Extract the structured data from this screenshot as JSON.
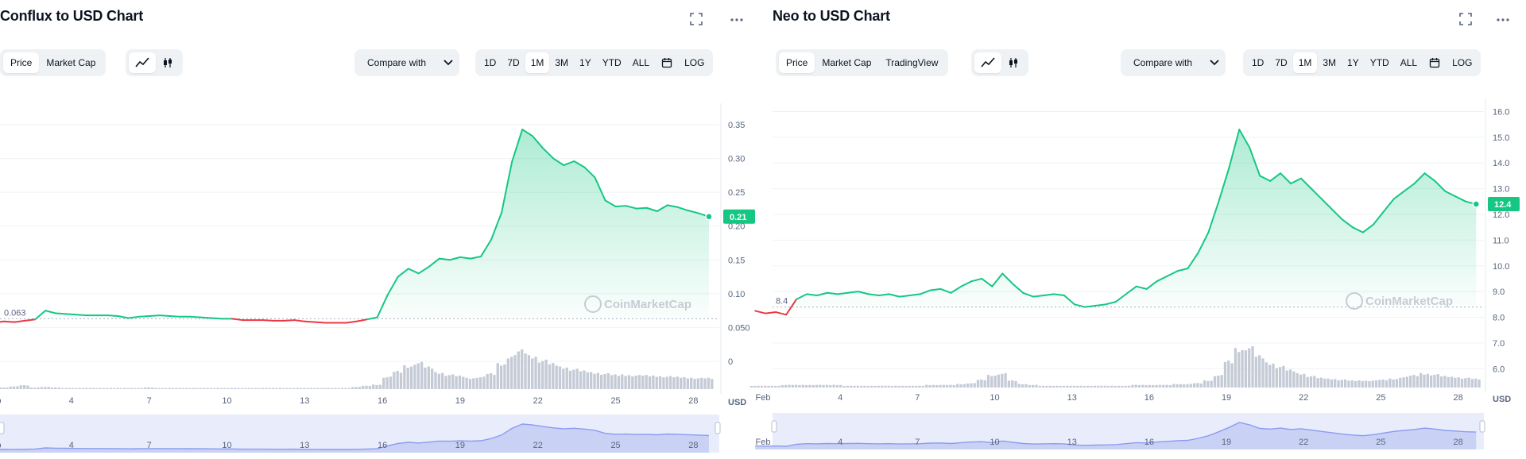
{
  "chart_data": [
    {
      "type": "line",
      "title": "Conflux to USD Chart",
      "unit": "USD",
      "price_tabs": [
        "Price",
        "Market Cap"
      ],
      "active_tab": "Price",
      "compare_label": "Compare with",
      "ranges": [
        "1D",
        "7D",
        "1M",
        "3M",
        "1Y",
        "YTD",
        "ALL"
      ],
      "active_range": "1M",
      "log_label": "LOG",
      "watermark": "CoinMarketCap",
      "ylim": [
        0,
        0.37
      ],
      "yticks": [
        0,
        0.05,
        0.1,
        0.15,
        0.2,
        0.25,
        0.3,
        0.35
      ],
      "ytick_labels": [
        "0",
        "0.050",
        "0.10",
        "0.15",
        "0.20",
        "0.25",
        "0.30",
        "0.35"
      ],
      "xlim": [
        1,
        29
      ],
      "xticks": [
        1,
        4,
        7,
        10,
        13,
        16,
        19,
        22,
        25,
        28
      ],
      "xtick_labels": [
        "Feb",
        "4",
        "7",
        "10",
        "13",
        "16",
        "19",
        "22",
        "25",
        "28"
      ],
      "open_price": 0.063,
      "open_label": "0.063",
      "current_label": "0.21",
      "x": [
        0.6,
        1.0,
        1.4,
        1.8,
        2.2,
        2.6,
        3.0,
        3.4,
        3.8,
        4.2,
        4.6,
        5.0,
        5.4,
        5.8,
        6.2,
        6.6,
        7.0,
        7.4,
        7.8,
        8.2,
        8.6,
        9.0,
        9.4,
        9.8,
        10.2,
        10.6,
        11.0,
        11.4,
        11.8,
        12.2,
        12.6,
        13.0,
        13.4,
        13.8,
        14.2,
        14.6,
        15.0,
        15.4,
        15.8,
        16.2,
        16.6,
        17.0,
        17.4,
        17.8,
        18.2,
        18.6,
        19.0,
        19.4,
        19.8,
        20.2,
        20.6,
        21.0,
        21.4,
        21.8,
        22.2,
        22.6,
        23.0,
        23.4,
        23.8,
        24.2,
        24.6,
        25.0,
        25.4,
        25.8,
        26.2,
        26.6,
        27.0,
        27.4,
        27.8,
        28.2,
        28.6
      ],
      "y": [
        0.058,
        0.057,
        0.059,
        0.058,
        0.06,
        0.062,
        0.075,
        0.071,
        0.07,
        0.069,
        0.068,
        0.068,
        0.068,
        0.067,
        0.064,
        0.066,
        0.067,
        0.068,
        0.067,
        0.066,
        0.066,
        0.065,
        0.064,
        0.063,
        0.063,
        0.061,
        0.061,
        0.061,
        0.06,
        0.06,
        0.061,
        0.059,
        0.058,
        0.057,
        0.057,
        0.057,
        0.059,
        0.062,
        0.065,
        0.098,
        0.125,
        0.137,
        0.13,
        0.14,
        0.152,
        0.15,
        0.154,
        0.152,
        0.155,
        0.18,
        0.22,
        0.295,
        0.343,
        0.333,
        0.315,
        0.3,
        0.29,
        0.296,
        0.287,
        0.272,
        0.238,
        0.229,
        0.23,
        0.226,
        0.227,
        0.222,
        0.231,
        0.228,
        0.223,
        0.219,
        0.214
      ],
      "volume": [
        2,
        2,
        3,
        5,
        7,
        3,
        4,
        3,
        2,
        2,
        2,
        2,
        2,
        2,
        2,
        2,
        3,
        2,
        2,
        2,
        2,
        2,
        2,
        2,
        2,
        2,
        2,
        2,
        2,
        2,
        2,
        2,
        2,
        2,
        2,
        2,
        4,
        6,
        8,
        22,
        32,
        42,
        48,
        40,
        30,
        26,
        24,
        20,
        22,
        28,
        46,
        60,
        70,
        60,
        52,
        46,
        40,
        36,
        33,
        30,
        28,
        26,
        26,
        25,
        25,
        24,
        23,
        22,
        21,
        20,
        20
      ]
    },
    {
      "type": "line",
      "title": "Neo to USD Chart",
      "unit": "USD",
      "price_tabs": [
        "Price",
        "Market Cap",
        "TradingView"
      ],
      "active_tab": "Price",
      "compare_label": "Compare with",
      "ranges": [
        "1D",
        "7D",
        "1M",
        "3M",
        "1Y",
        "YTD",
        "ALL"
      ],
      "active_range": "1M",
      "log_label": "LOG",
      "watermark": "CoinMarketCap",
      "ylim": [
        5.7,
        16.2
      ],
      "yticks": [
        6,
        7,
        8,
        9,
        10,
        11,
        12,
        13,
        14,
        15,
        16
      ],
      "ytick_labels": [
        "6.0",
        "7.0",
        "8.0",
        "9.0",
        "10.0",
        "11.0",
        "12.0",
        "13.0",
        "14.0",
        "15.0",
        "16.0"
      ],
      "xlim": [
        1,
        29
      ],
      "xticks": [
        1,
        4,
        7,
        10,
        13,
        16,
        19,
        22,
        25,
        28
      ],
      "xtick_labels": [
        "Feb",
        "4",
        "7",
        "10",
        "13",
        "16",
        "19",
        "22",
        "25",
        "28"
      ],
      "open_price": 8.4,
      "open_label": "8.4",
      "current_label": "12.4",
      "x": [
        0.7,
        1.1,
        1.5,
        1.9,
        2.3,
        2.7,
        3.1,
        3.5,
        3.9,
        4.3,
        4.7,
        5.1,
        5.5,
        5.9,
        6.3,
        6.7,
        7.1,
        7.5,
        7.9,
        8.3,
        8.7,
        9.1,
        9.5,
        9.9,
        10.3,
        10.7,
        11.1,
        11.5,
        11.9,
        12.3,
        12.7,
        13.1,
        13.5,
        13.9,
        14.3,
        14.7,
        15.1,
        15.5,
        15.9,
        16.3,
        16.7,
        17.1,
        17.5,
        17.9,
        18.3,
        18.7,
        19.1,
        19.5,
        19.9,
        20.3,
        20.7,
        21.1,
        21.5,
        21.9,
        22.3,
        22.7,
        23.1,
        23.5,
        23.9,
        24.3,
        24.7,
        25.1,
        25.5,
        25.9,
        26.3,
        26.7,
        27.1,
        27.5,
        27.9,
        28.3,
        28.7
      ],
      "y": [
        8.25,
        8.15,
        8.2,
        8.1,
        8.7,
        8.9,
        8.85,
        8.95,
        8.9,
        8.95,
        9.0,
        8.9,
        8.85,
        8.9,
        8.8,
        8.85,
        8.9,
        9.05,
        9.1,
        8.95,
        9.2,
        9.4,
        9.5,
        9.2,
        9.7,
        9.3,
        8.95,
        8.8,
        8.85,
        8.9,
        8.85,
        8.5,
        8.4,
        8.45,
        8.5,
        8.6,
        8.9,
        9.2,
        9.1,
        9.4,
        9.6,
        9.8,
        9.9,
        10.5,
        11.3,
        12.5,
        13.8,
        15.3,
        14.6,
        13.5,
        13.3,
        13.6,
        13.2,
        13.4,
        13.0,
        12.6,
        12.2,
        11.8,
        11.5,
        11.3,
        11.6,
        12.1,
        12.6,
        12.9,
        13.2,
        13.6,
        13.3,
        12.9,
        12.7,
        12.5,
        12.4
      ],
      "volume": [
        2,
        2,
        2,
        3,
        3,
        3,
        3,
        3,
        3,
        2,
        2,
        2,
        2,
        2,
        2,
        2,
        2,
        3,
        3,
        3,
        4,
        5,
        9,
        14,
        16,
        8,
        4,
        3,
        2,
        2,
        2,
        2,
        2,
        2,
        2,
        2,
        2,
        3,
        3,
        3,
        3,
        4,
        4,
        5,
        8,
        14,
        30,
        44,
        46,
        36,
        28,
        24,
        20,
        16,
        13,
        11,
        10,
        9,
        8,
        8,
        8,
        9,
        10,
        12,
        14,
        16,
        15,
        13,
        12,
        11,
        10
      ]
    }
  ]
}
